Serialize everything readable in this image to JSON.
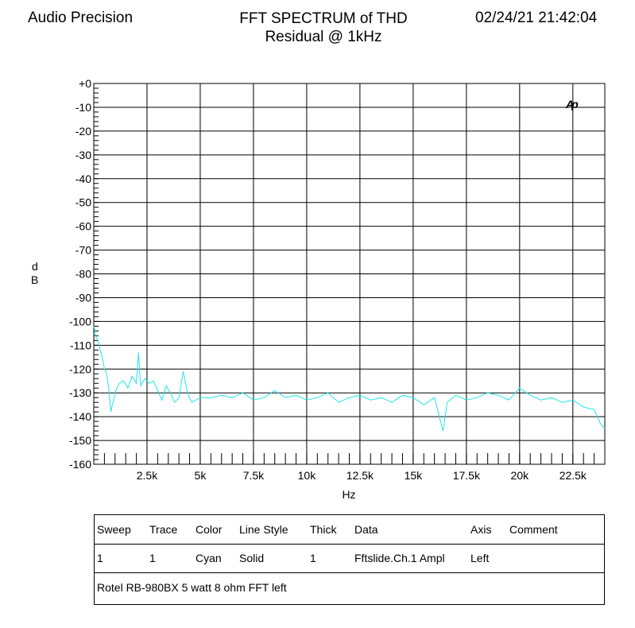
{
  "header": {
    "brand": "Audio Precision",
    "title_line1": "FFT SPECTRUM of THD",
    "title_line2": "Residual @ 1kHz",
    "datetime": "02/24/21 21:42:04"
  },
  "logo_text": "Ap",
  "colors": {
    "trace": "#22e6e6",
    "logo": "#2030d0",
    "grid": "#000000"
  },
  "chart_data": {
    "type": "line",
    "xlabel": "Hz",
    "ylabel": "dB",
    "xlim": [
      0,
      24000
    ],
    "ylim": [
      -160,
      0
    ],
    "grid": true,
    "x_ticks": [
      2500,
      5000,
      7500,
      10000,
      12500,
      15000,
      17500,
      20000,
      22500
    ],
    "x_tick_labels": [
      "2.5k",
      "5k",
      "7.5k",
      "10k",
      "12.5k",
      "15k",
      "17.5k",
      "20k",
      "22.5k"
    ],
    "y_ticks": [
      0,
      -10,
      -20,
      -30,
      -40,
      -50,
      -60,
      -70,
      -80,
      -90,
      -100,
      -110,
      -120,
      -130,
      -140,
      -150,
      -160
    ],
    "y_tick_labels": [
      "+0",
      "-10",
      "-20",
      "-30",
      "-40",
      "-50",
      "-60",
      "-70",
      "-80",
      "-90",
      "-100",
      "-110",
      "-120",
      "-130",
      "-140",
      "-150",
      "-160"
    ],
    "series": [
      {
        "x": [
          0,
          100,
          200,
          300,
          400,
          500,
          600,
          700,
          800,
          1000,
          1200,
          1400,
          1600,
          1800,
          2000,
          2100,
          2200,
          2400,
          2600,
          2800,
          3000,
          3200,
          3400,
          3600,
          3800,
          4000,
          4200,
          4400,
          4600,
          4800,
          5000,
          5500,
          6000,
          6500,
          7000,
          7500,
          8000,
          8500,
          9000,
          9500,
          10000,
          10500,
          11000,
          11500,
          12000,
          12500,
          13000,
          13500,
          14000,
          14500,
          15000,
          15500,
          16000,
          16400,
          16600,
          17000,
          17500,
          18000,
          18500,
          19000,
          19500,
          20000,
          20500,
          21000,
          21500,
          22000,
          22500,
          23000,
          23500,
          23800,
          24000
        ],
        "values": [
          -102,
          -106,
          -108,
          -112,
          -115,
          -120,
          -122,
          -128,
          -138,
          -130,
          -126,
          -125,
          -128,
          -123,
          -126,
          -113,
          -127,
          -124,
          -126,
          -125,
          -129,
          -133,
          -127,
          -130,
          -134,
          -132,
          -121,
          -130,
          -134,
          -133,
          -132,
          -132,
          -131,
          -132,
          -130,
          -133,
          -132,
          -129,
          -132,
          -131,
          -133,
          -132,
          -130,
          -134,
          -132,
          -131,
          -133,
          -132,
          -134,
          -131,
          -132,
          -135,
          -132,
          -146,
          -134,
          -131,
          -133,
          -132,
          -130,
          -131,
          -133,
          -128,
          -131,
          -133,
          -132,
          -134,
          -133,
          -136,
          -137,
          -143,
          -145
        ]
      }
    ]
  },
  "legend": {
    "headers": [
      "Sweep",
      "Trace",
      "Color",
      "Line Style",
      "Thick",
      "Data",
      "Axis",
      "Comment"
    ],
    "row": [
      "1",
      "1",
      "Cyan",
      "Solid",
      "1",
      "Fftslide.Ch.1 Ampl",
      "Left",
      ""
    ],
    "note": "Rotel RB-980BX 5 watt 8 ohm FFT left"
  }
}
